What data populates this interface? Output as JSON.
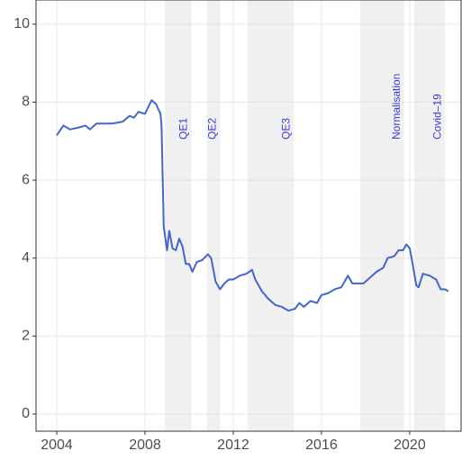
{
  "chart_data": {
    "type": "line",
    "x": [
      2004.0,
      2004.3,
      2004.6,
      2005.0,
      2005.3,
      2005.5,
      2005.8,
      2006.0,
      2006.5,
      2007.0,
      2007.3,
      2007.5,
      2007.7,
      2008.0,
      2008.3,
      2008.5,
      2008.7,
      2008.75,
      2008.85,
      2009.0,
      2009.1,
      2009.25,
      2009.4,
      2009.55,
      2009.7,
      2009.85,
      2010.0,
      2010.15,
      2010.35,
      2010.6,
      2010.85,
      2011.0,
      2011.2,
      2011.4,
      2011.6,
      2011.8,
      2012.0,
      2012.3,
      2012.6,
      2012.85,
      2013.0,
      2013.3,
      2013.6,
      2013.9,
      2014.2,
      2014.5,
      2014.8,
      2015.0,
      2015.2,
      2015.5,
      2015.8,
      2016.0,
      2016.3,
      2016.6,
      2016.9,
      2017.1,
      2017.2,
      2017.4,
      2017.7,
      2017.9,
      2018.2,
      2018.5,
      2018.8,
      2019.0,
      2019.3,
      2019.5,
      2019.7,
      2019.85,
      2020.0,
      2020.1,
      2020.3,
      2020.4,
      2020.6,
      2020.9,
      2021.2,
      2021.4,
      2021.6,
      2021.75
    ],
    "series": [
      {
        "color": "#4466cc",
        "values": [
          7.15,
          7.4,
          7.3,
          7.35,
          7.4,
          7.3,
          7.45,
          7.45,
          7.45,
          7.5,
          7.65,
          7.6,
          7.75,
          7.7,
          8.05,
          7.95,
          7.7,
          7.4,
          4.8,
          4.2,
          4.7,
          4.25,
          4.2,
          4.5,
          4.3,
          3.85,
          3.85,
          3.65,
          3.9,
          3.95,
          4.1,
          4.0,
          3.4,
          3.2,
          3.35,
          3.45,
          3.45,
          3.55,
          3.6,
          3.7,
          3.45,
          3.15,
          2.95,
          2.8,
          2.75,
          2.65,
          2.7,
          2.85,
          2.75,
          2.9,
          2.85,
          3.05,
          3.1,
          3.2,
          3.25,
          3.45,
          3.55,
          3.35,
          3.35,
          3.35,
          3.5,
          3.65,
          3.75,
          4.0,
          4.05,
          4.2,
          4.2,
          4.35,
          4.25,
          3.95,
          3.3,
          3.25,
          3.6,
          3.55,
          3.45,
          3.2,
          3.2,
          3.15
        ]
      }
    ],
    "shaded_regions": [
      {
        "label": "QE1",
        "start": 2008.9,
        "end": 2010.1
      },
      {
        "label": "QE2",
        "start": 2010.8,
        "end": 2011.4
      },
      {
        "label": "QE3",
        "start": 2012.65,
        "end": 2014.75
      },
      {
        "label": "Normalisation",
        "start": 2017.75,
        "end": 2019.75
      },
      {
        "label": "Covid–19",
        "start": 2020.2,
        "end": 2021.6
      }
    ],
    "xlim": [
      2003.06,
      2022.33
    ],
    "xticks": [
      2004,
      2008,
      2012,
      2016,
      2020
    ],
    "ylim": [
      -0.44,
      10.62
    ],
    "yticks": [
      0,
      2,
      4,
      6,
      8,
      10
    ],
    "grid": true
  }
}
